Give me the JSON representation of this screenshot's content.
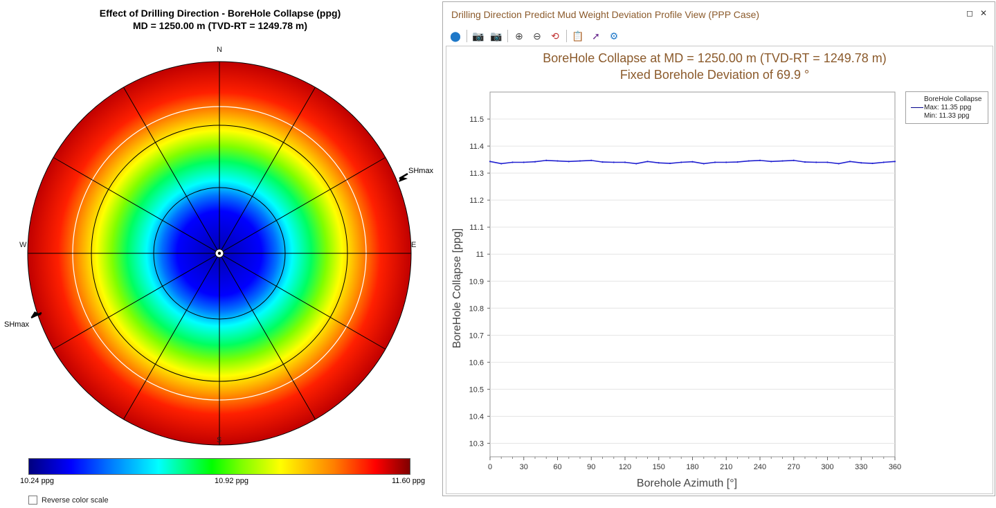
{
  "polar": {
    "title_line1": "Effect of Drilling Direction - BoreHole Collapse (ppg)",
    "title_line2": "MD = 1250.00 m (TVD-RT = 1249.78 m)",
    "north": "N",
    "south": "S",
    "east": "E",
    "west": "W",
    "shmax_label_right": "SHmax",
    "shmax_label_left": "SHmax"
  },
  "colorbar": {
    "min_label": "10.24 ppg",
    "mid_label": "10.92 ppg",
    "max_label": "11.60 ppg",
    "colors": [
      "#00007f",
      "#0000ff",
      "#0080ff",
      "#00ffff",
      "#00ff00",
      "#80ff00",
      "#ffff00",
      "#ff8000",
      "#ff0000",
      "#800000"
    ]
  },
  "reverse_color_scale": {
    "label": "Reverse color scale",
    "checked": false
  },
  "panel": {
    "title": "Drilling Direction Predict Mud Weight Deviation Profile View (PPP Case)",
    "maximize_glyph": "◻",
    "close_glyph": "✕",
    "toolbar": [
      {
        "name": "map-pin-icon",
        "glyph": "⬤",
        "color": "#1e78c8"
      },
      {
        "name": "camera-icon",
        "glyph": "📷",
        "color": "#555555"
      },
      {
        "name": "camera-copy-icon",
        "glyph": "📷",
        "color": "#555555"
      },
      {
        "name": "zoom-in-icon",
        "glyph": "⊕",
        "color": "#444444"
      },
      {
        "name": "zoom-out-icon",
        "glyph": "⊖",
        "color": "#444444"
      },
      {
        "name": "zoom-reset-icon",
        "glyph": "⟲",
        "color": "#c03030"
      },
      {
        "name": "clipboard-icon",
        "glyph": "📋",
        "color": "#1e78c8"
      },
      {
        "name": "export-icon",
        "glyph": "➚",
        "color": "#6a2c8f"
      },
      {
        "name": "settings-icon",
        "glyph": "⚙",
        "color": "#1e78c8"
      }
    ]
  },
  "chart_data": {
    "type": "line",
    "title_line1": "BoreHole Collapse at MD = 1250.00 m (TVD-RT = 1249.78 m)",
    "title_line2": "Fixed Borehole Deviation of 69.9 °",
    "xlabel": "Borehole Azimuth [°]",
    "ylabel": "BoreHole Collapse [ppg]",
    "xlim": [
      0,
      360
    ],
    "ylim": [
      10.25,
      11.6
    ],
    "xticks": [
      0,
      30,
      60,
      90,
      120,
      150,
      180,
      210,
      240,
      270,
      300,
      330,
      360
    ],
    "yticks": [
      10.3,
      10.4,
      10.5,
      10.6,
      10.7,
      10.8,
      10.9,
      11,
      11.1,
      11.2,
      11.3,
      11.4,
      11.5
    ],
    "grid": true,
    "legend_position": "top-right",
    "series": [
      {
        "name": "BoreHole Collapse",
        "color": "#2020d0",
        "x": [
          0,
          10,
          20,
          30,
          40,
          50,
          60,
          70,
          80,
          90,
          100,
          110,
          120,
          130,
          140,
          150,
          160,
          170,
          180,
          190,
          200,
          210,
          220,
          230,
          240,
          250,
          260,
          270,
          280,
          290,
          300,
          310,
          320,
          330,
          340,
          350,
          360
        ],
        "y": [
          11.343,
          11.335,
          11.34,
          11.34,
          11.342,
          11.347,
          11.345,
          11.343,
          11.345,
          11.347,
          11.341,
          11.34,
          11.34,
          11.335,
          11.343,
          11.338,
          11.336,
          11.34,
          11.342,
          11.335,
          11.34,
          11.34,
          11.341,
          11.345,
          11.347,
          11.343,
          11.345,
          11.347,
          11.341,
          11.34,
          11.34,
          11.335,
          11.343,
          11.338,
          11.336,
          11.34,
          11.343
        ]
      }
    ],
    "legend": {
      "header": "BoreHole Collapse",
      "max_text": "Max: 11.35 ppg",
      "min_text": "Min: 11.33 ppg"
    }
  }
}
